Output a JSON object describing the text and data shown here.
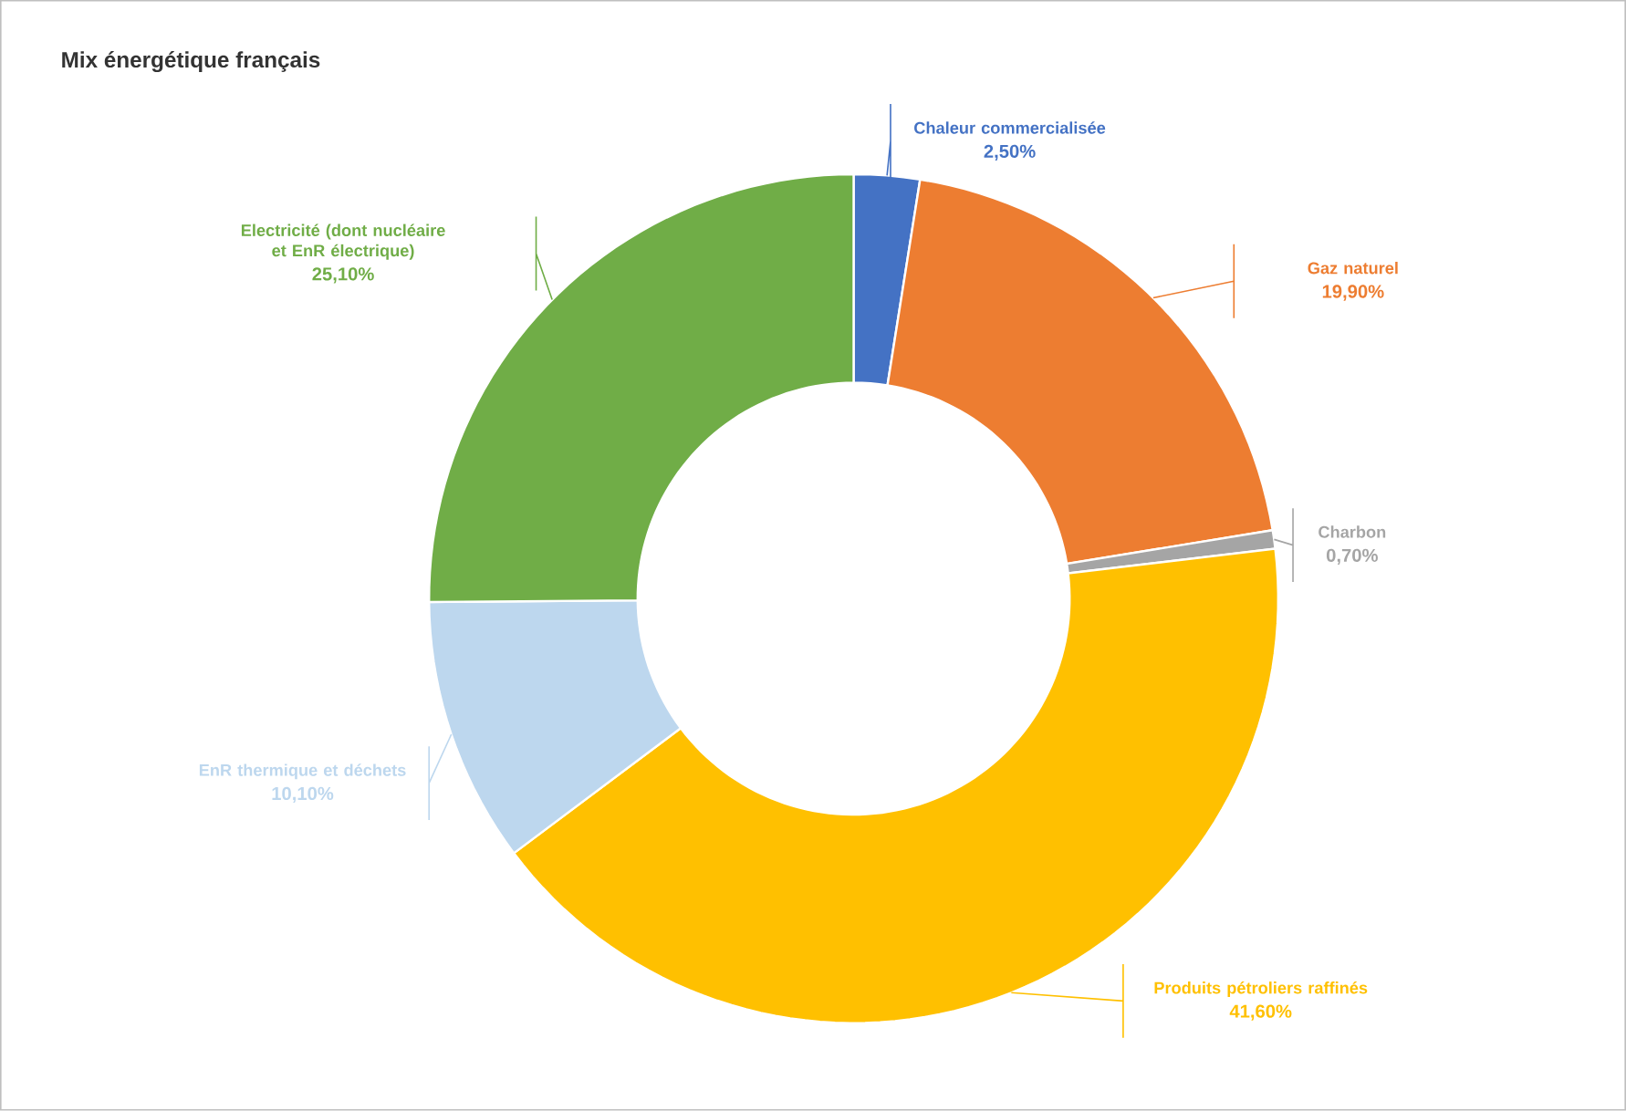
{
  "chart_data": {
    "type": "donut",
    "title": "Mix énergétique français",
    "categories": [
      "Chaleur commercialisée",
      "Gaz naturel",
      "Charbon",
      "Produits pétroliers raffinés",
      "EnR thermique et déchets",
      "Electricité (dont nucléaire et EnR électrique)"
    ],
    "values": [
      2.5,
      19.9,
      0.7,
      41.6,
      10.1,
      25.1
    ],
    "value_labels": [
      "2,50%",
      "19,90%",
      "0,70%",
      "41,60%",
      "10,10%",
      "25,10%"
    ],
    "colors": [
      "#4472c4",
      "#ed7d31",
      "#a5a5a5",
      "#ffc000",
      "#bdd7ee",
      "#70ad47"
    ]
  }
}
